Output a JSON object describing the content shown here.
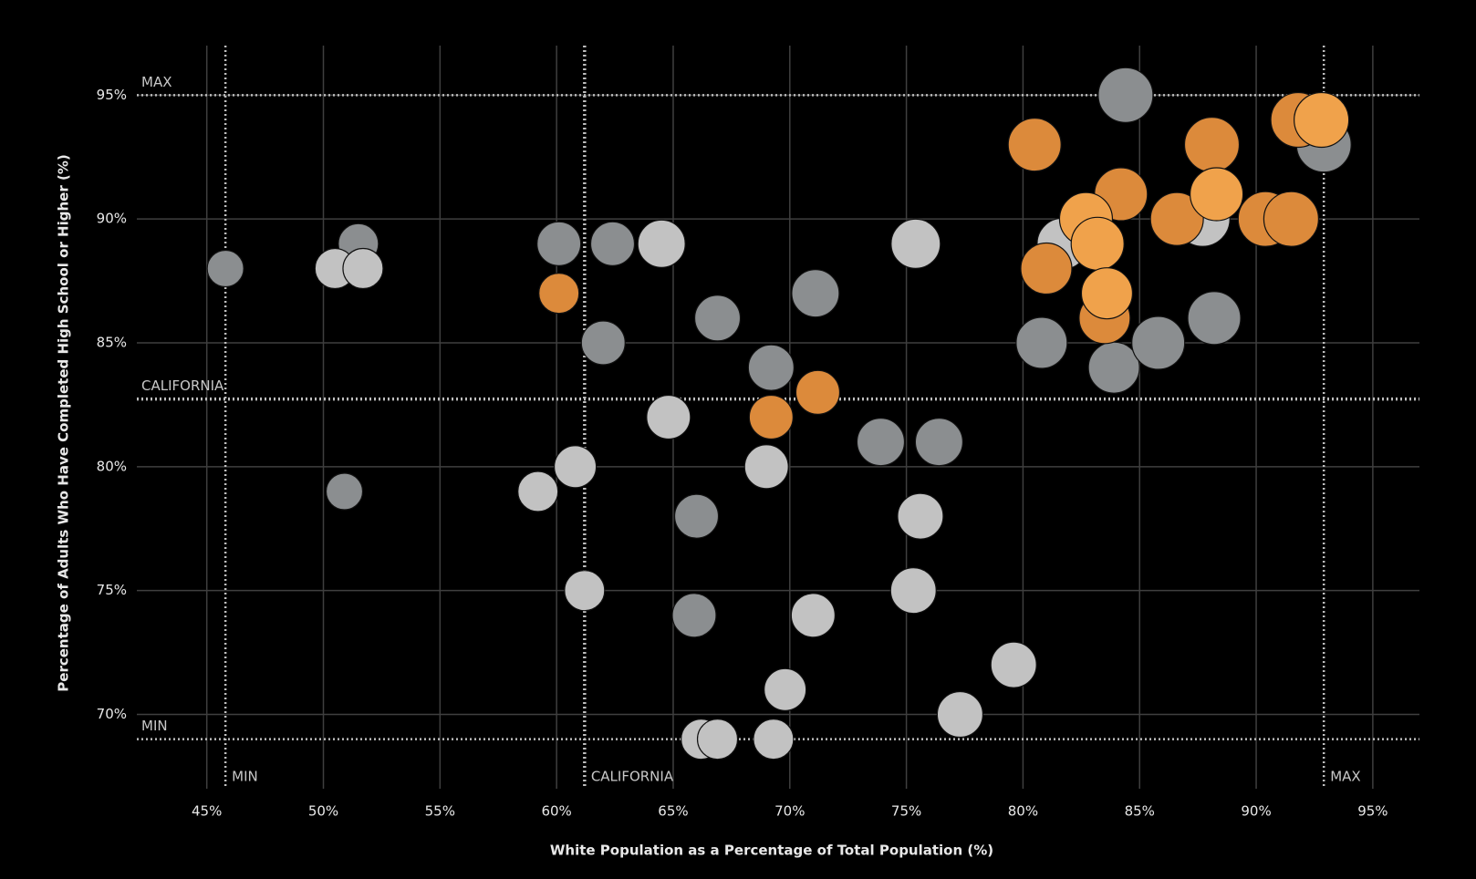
{
  "chart_data": {
    "type": "scatter",
    "x_label": "White Population as a Percentage of Total Population (%)",
    "y_label": "Percentage of Adults Who Have Completed High School or Higher (%)",
    "xlim": [
      42,
      97
    ],
    "ylim": [
      67,
      97
    ],
    "xticks": [
      {
        "value": 45,
        "label": "45%"
      },
      {
        "value": 50,
        "label": "50%"
      },
      {
        "value": 55,
        "label": "55%"
      },
      {
        "value": 60,
        "label": "60%"
      },
      {
        "value": 65,
        "label": "65%"
      },
      {
        "value": 70,
        "label": "70%"
      },
      {
        "value": 75,
        "label": "75%"
      },
      {
        "value": 80,
        "label": "80%"
      },
      {
        "value": 85,
        "label": "85%"
      },
      {
        "value": 90,
        "label": "90%"
      },
      {
        "value": 95,
        "label": "95%"
      }
    ],
    "yticks": [
      {
        "value": 70,
        "label": "70%"
      },
      {
        "value": 75,
        "label": "75%"
      },
      {
        "value": 80,
        "label": "80%"
      },
      {
        "value": 85,
        "label": "85%"
      },
      {
        "value": 90,
        "label": "90%"
      },
      {
        "value": 95,
        "label": "95%"
      }
    ],
    "grid": true,
    "reference_lines": [
      {
        "axis": "x",
        "value": 45.8,
        "label": "MIN"
      },
      {
        "axis": "x",
        "value": 61.2,
        "label": "CALIFORNIA"
      },
      {
        "axis": "x",
        "value": 92.9,
        "label": "MAX"
      },
      {
        "axis": "y",
        "value": 95,
        "label": "MAX"
      },
      {
        "axis": "y",
        "value": 82.73,
        "label": "CALIFORNIA"
      },
      {
        "axis": "y",
        "value": 69,
        "label": "MIN"
      }
    ],
    "series": [
      {
        "color": "#8b8e90",
        "x": [
          45.8,
          51.5,
          50.9,
          60.1,
          62.4,
          62.0,
          66.9,
          71.1,
          69.2,
          73.9,
          76.4,
          66.0,
          65.9,
          84.4,
          80.8,
          83.9,
          85.8,
          88.2,
          92.9
        ],
        "values": [
          88,
          89,
          79,
          89,
          89,
          85,
          86,
          87,
          84,
          81,
          81,
          78,
          74,
          95,
          85,
          84,
          85,
          86,
          93
        ],
        "sizes": [
          20,
          22,
          20,
          24,
          24,
          24,
          25,
          26,
          25,
          26,
          26,
          24,
          24,
          30,
          28,
          28,
          29,
          29,
          30
        ]
      },
      {
        "color": "#c2c2c2",
        "x": [
          50.5,
          51.7,
          64.5,
          75.4,
          64.8,
          60.8,
          59.2,
          69.0,
          75.6,
          61.2,
          75.3,
          71.0,
          69.8,
          79.6,
          77.3,
          66.2,
          66.9,
          69.3,
          81.7,
          87.7
        ],
        "values": [
          88,
          88,
          89,
          89,
          82,
          80,
          79,
          80,
          78,
          75,
          75,
          74,
          71,
          72,
          70,
          69,
          69,
          69,
          89,
          90
        ],
        "sizes": [
          22,
          22,
          26,
          27,
          24,
          23,
          22,
          24,
          25,
          22,
          25,
          24,
          23,
          25,
          25,
          22,
          22,
          22,
          28,
          30
        ]
      },
      {
        "color": "#dc8a3b",
        "x": [
          60.1,
          69.2,
          71.2,
          80.5,
          81.0,
          84.2,
          88.1,
          90.4,
          91.8,
          83.5,
          86.6,
          91.5
        ],
        "values": [
          87,
          82,
          83,
          93,
          88,
          91,
          93,
          90,
          94,
          86,
          90,
          90
        ],
        "sizes": [
          22,
          24,
          24,
          29,
          28,
          29,
          30,
          30,
          30,
          28,
          29,
          30
        ]
      },
      {
        "color": "#f0a24b",
        "x": [
          82.7,
          83.2,
          83.6,
          88.3,
          92.8
        ],
        "values": [
          90,
          89,
          87,
          91,
          94
        ],
        "sizes": [
          29,
          29,
          28,
          29,
          30
        ]
      }
    ]
  }
}
